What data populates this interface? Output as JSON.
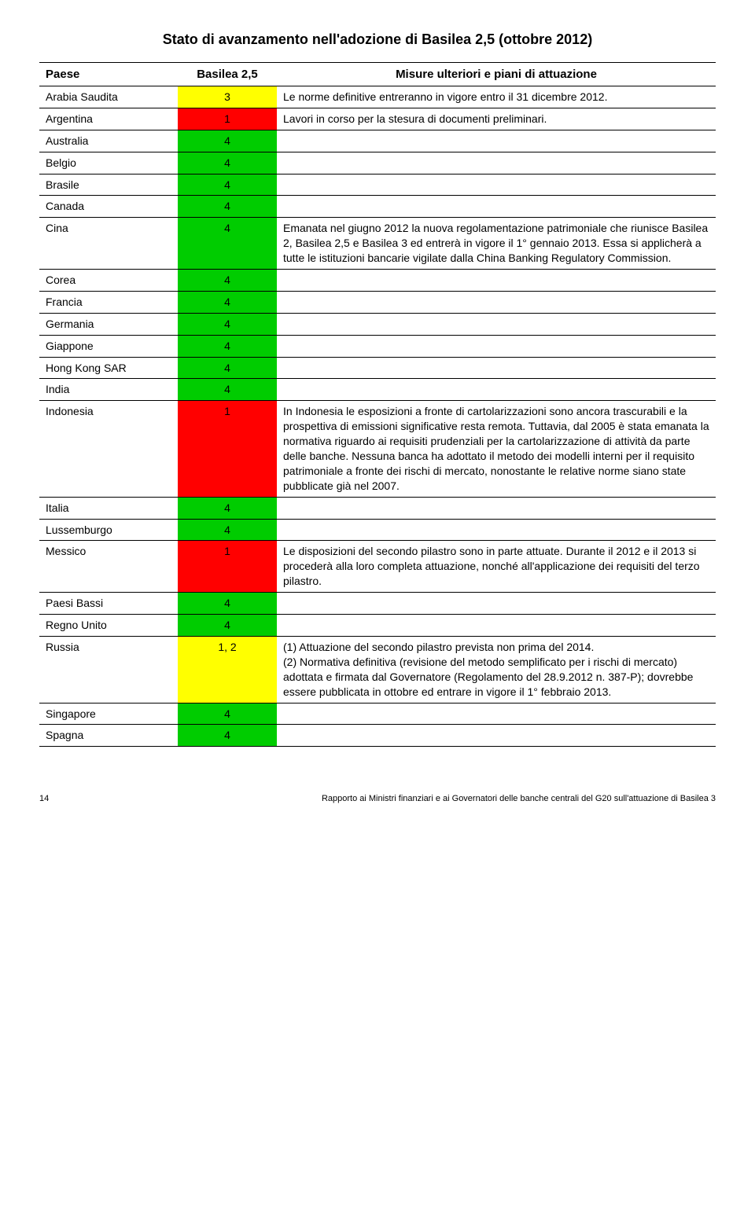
{
  "title": "Stato di avanzamento nell'adozione di Basilea 2,5 (ottobre 2012)",
  "columns": {
    "country": "Paese",
    "score": "Basilea 2,5",
    "notes": "Misure ulteriori e piani di attuazione"
  },
  "colors": {
    "green": "#00cc00",
    "red": "#ff0000",
    "yellow": "#ffff00"
  },
  "rows": [
    {
      "country": "Arabia Saudita",
      "score": "3",
      "color": "yellow",
      "notes": "Le norme definitive entreranno in vigore entro il 31 dicembre 2012."
    },
    {
      "country": "Argentina",
      "score": "1",
      "color": "red",
      "notes": "Lavori in corso per la stesura di documenti preliminari."
    },
    {
      "country": "Australia",
      "score": "4",
      "color": "green",
      "notes": ""
    },
    {
      "country": "Belgio",
      "score": "4",
      "color": "green",
      "notes": ""
    },
    {
      "country": "Brasile",
      "score": "4",
      "color": "green",
      "notes": ""
    },
    {
      "country": "Canada",
      "score": "4",
      "color": "green",
      "notes": ""
    },
    {
      "country": "Cina",
      "score": "4",
      "color": "green",
      "notes": "Emanata nel giugno 2012 la nuova regolamentazione patrimoniale che riunisce Basilea 2, Basilea 2,5 e Basilea 3 ed entrerà in vigore il 1° gennaio 2013. Essa si applicherà a tutte le istituzioni bancarie vigilate dalla China Banking Regulatory Commission."
    },
    {
      "country": "Corea",
      "score": "4",
      "color": "green",
      "notes": ""
    },
    {
      "country": "Francia",
      "score": "4",
      "color": "green",
      "notes": ""
    },
    {
      "country": "Germania",
      "score": "4",
      "color": "green",
      "notes": ""
    },
    {
      "country": "Giappone",
      "score": "4",
      "color": "green",
      "notes": ""
    },
    {
      "country": "Hong Kong SAR",
      "score": "4",
      "color": "green",
      "notes": ""
    },
    {
      "country": "India",
      "score": "4",
      "color": "green",
      "notes": ""
    },
    {
      "country": "Indonesia",
      "score": "1",
      "color": "red",
      "notes": "In Indonesia le esposizioni a fronte di cartolarizzazioni sono ancora trascurabili e la prospettiva di emissioni significative resta remota. Tuttavia, dal 2005 è stata emanata la normativa riguardo ai requisiti prudenziali per la cartolarizzazione di attività da parte delle banche. Nessuna banca ha adottato il metodo dei modelli interni per il requisito patrimoniale a fronte dei rischi di mercato, nonostante le relative norme siano state pubblicate già nel 2007."
    },
    {
      "country": "Italia",
      "score": "4",
      "color": "green",
      "notes": ""
    },
    {
      "country": "Lussemburgo",
      "score": "4",
      "color": "green",
      "notes": ""
    },
    {
      "country": "Messico",
      "score": "1",
      "color": "red",
      "notes": "Le disposizioni del secondo pilastro sono in parte attuate. Durante il 2012 e il 2013 si procederà alla loro completa attuazione, nonché all'applicazione dei requisiti del terzo pilastro."
    },
    {
      "country": "Paesi Bassi",
      "score": "4",
      "color": "green",
      "notes": ""
    },
    {
      "country": "Regno Unito",
      "score": "4",
      "color": "green",
      "notes": ""
    },
    {
      "country": "Russia",
      "score": "1, 2",
      "color": "yellow",
      "notes": "(1) Attuazione del secondo pilastro prevista non prima del 2014.\n(2) Normativa definitiva (revisione del metodo semplificato per i rischi di mercato) adottata e firmata dal Governatore (Regolamento del 28.9.2012 n. 387-P); dovrebbe essere pubblicata in ottobre ed entrare in vigore il 1° febbraio 2013."
    },
    {
      "country": "Singapore",
      "score": "4",
      "color": "green",
      "notes": ""
    },
    {
      "country": "Spagna",
      "score": "4",
      "color": "green",
      "notes": ""
    }
  ],
  "footer": {
    "page": "14",
    "text": "Rapporto ai Ministri finanziari e ai Governatori delle banche centrali del G20 sull'attuazione di Basilea 3"
  }
}
